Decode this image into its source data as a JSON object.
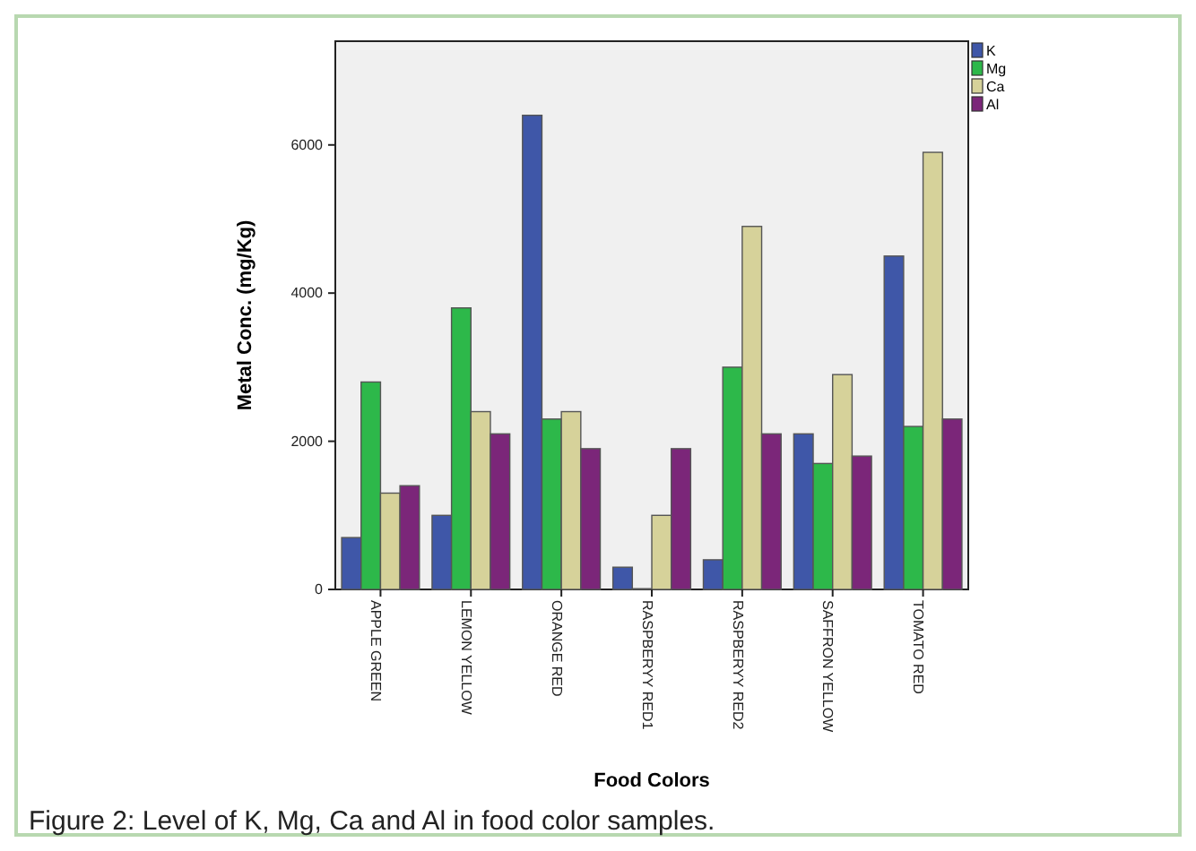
{
  "chart_data": {
    "type": "bar",
    "xlabel": "Food Colors",
    "ylabel": "Metal Conc. (mg/Kg)",
    "categories": [
      "APPLE GREEN",
      "LEMON YELLOW",
      "ORANGE RED",
      "RASPBERYY RED1",
      "RASPBERYY RED2",
      "SAFFRON YELLOW",
      "TOMATO RED"
    ],
    "series": [
      {
        "name": "K",
        "color": "#3f57a8",
        "values": [
          700,
          1000,
          6400,
          300,
          400,
          2100,
          4500
        ]
      },
      {
        "name": "Mg",
        "color": "#2db84a",
        "values": [
          2800,
          3800,
          2300,
          10,
          3000,
          1700,
          2200
        ]
      },
      {
        "name": "Ca",
        "color": "#d6d29a",
        "values": [
          1300,
          2400,
          2400,
          1000,
          4900,
          2900,
          5900
        ]
      },
      {
        "name": "Al",
        "color": "#7b2679",
        "values": [
          1400,
          2100,
          1900,
          1900,
          2100,
          1800,
          2300
        ]
      }
    ],
    "ylim": [
      0,
      7400
    ],
    "yticks": [
      0,
      2000,
      4000,
      6000
    ],
    "grid": false,
    "legend": "top right",
    "annotations": [
      "Figure 2: Level of K, Mg, Ca and Al in food color samples."
    ]
  }
}
